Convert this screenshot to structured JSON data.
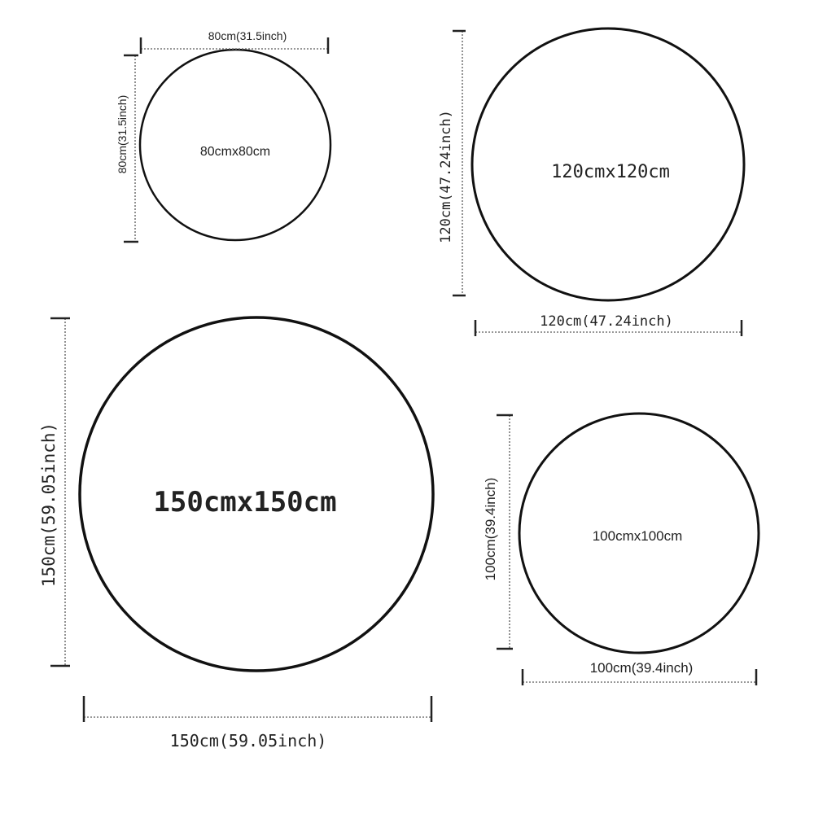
{
  "rugs": [
    {
      "size_label": "80cmx80cm",
      "width_label": "80cm(31.5inch)",
      "height_label": "80cm(31.5inch)"
    },
    {
      "size_label": "120cmx120cm",
      "width_label": "120cm(47.24inch)",
      "height_label": "120cm(47.24inch)"
    },
    {
      "size_label": "150cmx150cm",
      "width_label": "150cm(59.05inch)",
      "height_label": "150cm(59.05inch)"
    },
    {
      "size_label": "100cmx100cm",
      "width_label": "100cm(39.4inch)",
      "height_label": "100cm(39.4inch)"
    }
  ],
  "colors": {
    "outline": "#111111",
    "dimension_line": "#777777"
  }
}
